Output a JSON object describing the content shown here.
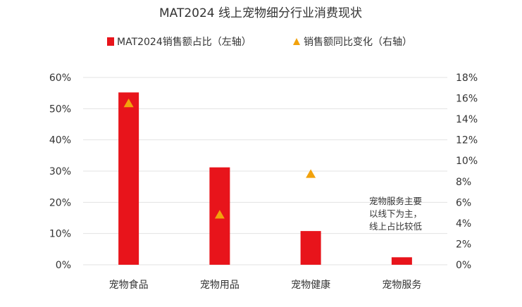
{
  "chart_data": {
    "type": "bar",
    "title": "MAT2024 线上宠物细分行业消费现状",
    "categories": [
      "宠物食品",
      "宠物用品",
      "宠物健康",
      "宠物服务"
    ],
    "series": [
      {
        "name": "MAT2024销售额占比（左轴）",
        "type": "bar",
        "axis": "left",
        "color": "#e8141b",
        "values": [
          55.2,
          31.2,
          10.8,
          2.4
        ]
      },
      {
        "name": "销售额同比变化（右轴）",
        "type": "marker",
        "marker": "triangle",
        "axis": "right",
        "color": "#f2a20c",
        "values": [
          15.5,
          4.8,
          8.7,
          null
        ]
      }
    ],
    "y_left": {
      "min": 0,
      "max": 60,
      "step": 10,
      "ticks": [
        "0%",
        "10%",
        "20%",
        "30%",
        "40%",
        "50%",
        "60%"
      ]
    },
    "y_right": {
      "min": 0,
      "max": 18,
      "step": 2,
      "ticks": [
        "0%",
        "2%",
        "4%",
        "6%",
        "8%",
        "10%",
        "12%",
        "14%",
        "16%",
        "18%"
      ]
    },
    "gridlines": true,
    "legend_position": "top",
    "annotation": {
      "lines": [
        "宠物服务主要",
        "以线下为主，",
        "线上占比较低"
      ]
    }
  }
}
